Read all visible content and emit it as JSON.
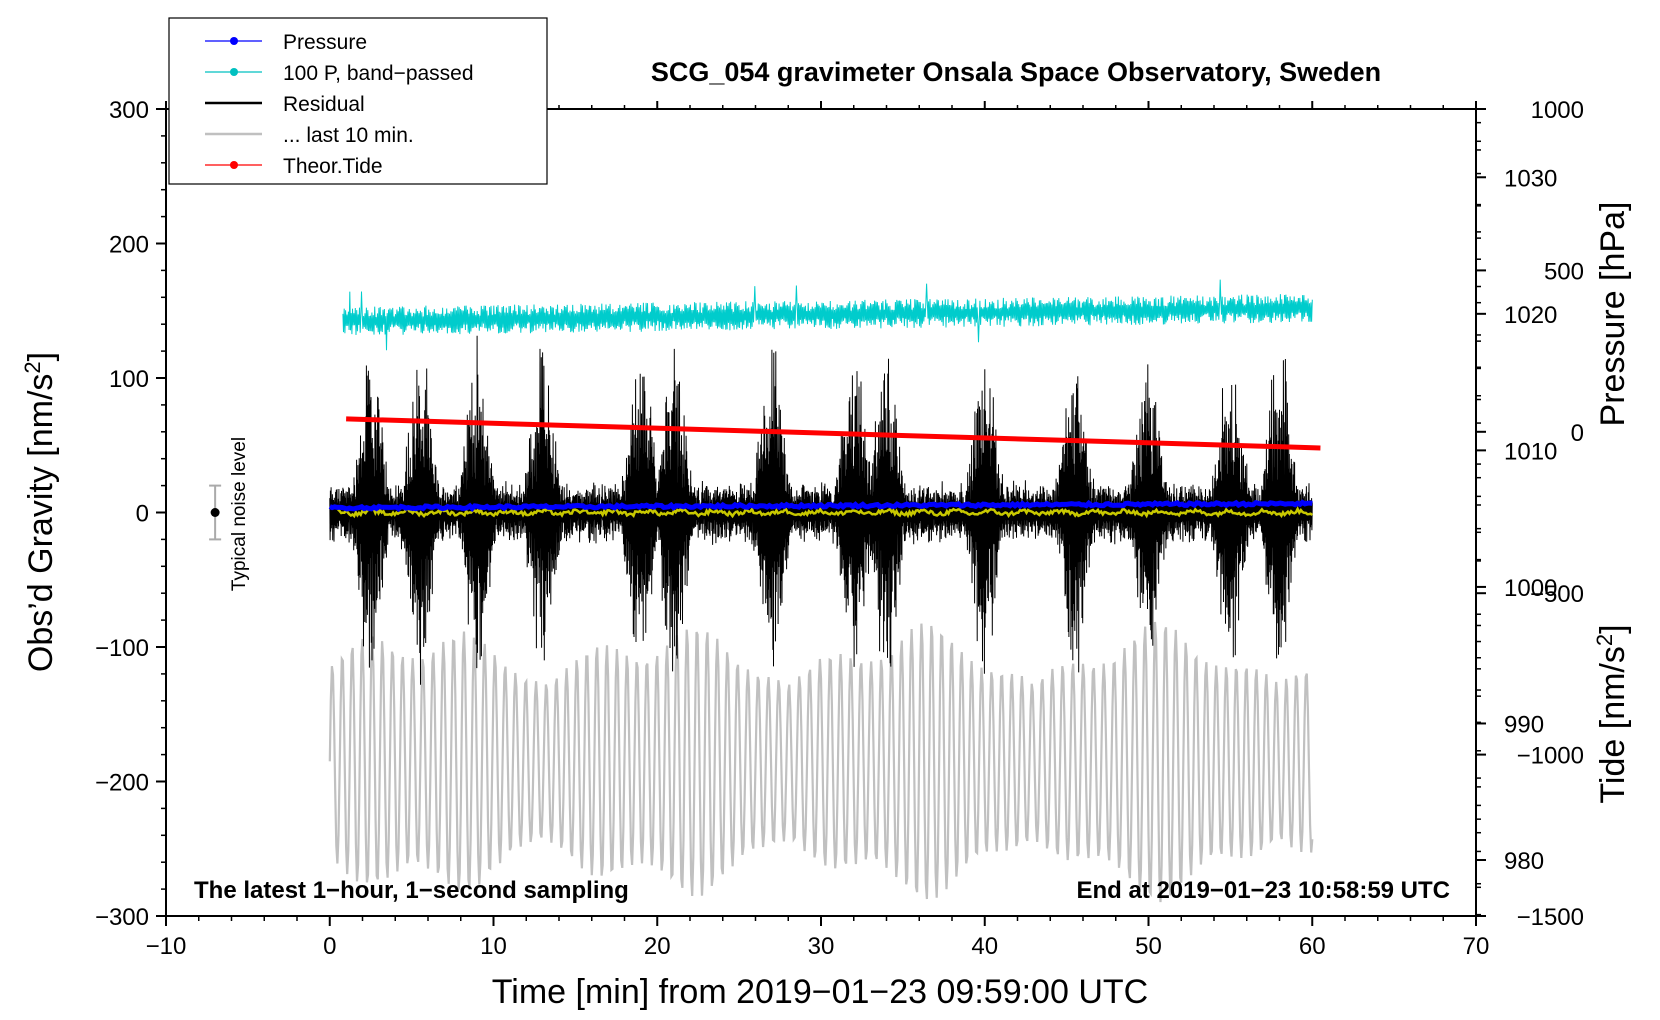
{
  "chart_data": {
    "type": "line",
    "title": "SCG_054 gravimeter Onsala Space Observatory, Sweden",
    "xlabel": "Time [min] from 2019−01−23 09:59:00 UTC",
    "ylabel": "Obs’d Gravity [nm/s²]",
    "ylabel_parts": {
      "main": "Obs’d Gravity [nm/s",
      "sup": "2",
      "end": "]"
    },
    "y2label": "Pressure [hPa]",
    "y3label_parts": {
      "main": "Tide [nm/s",
      "sup": "2",
      "end": "]"
    },
    "xlim": [
      -10,
      70
    ],
    "ylim": [
      -300,
      300
    ],
    "x_ticks": [
      "−10",
      "0",
      "10",
      "20",
      "30",
      "40",
      "50",
      "60",
      "70"
    ],
    "y_ticks": [
      "−300",
      "−200",
      "−100",
      "0",
      "100",
      "200",
      "300"
    ],
    "pressure_axis": {
      "ticks": [
        "980",
        "990",
        "1000",
        "1010",
        "1020",
        "1030"
      ],
      "range_hPa": [
        975.9,
        1035
      ]
    },
    "tide_axis": {
      "ticks": [
        "−1500",
        "−1000",
        "−500",
        "0",
        "500",
        "1000"
      ],
      "range_nms2": [
        -1500,
        1000
      ]
    },
    "legend": {
      "position": "top-left",
      "entries": [
        {
          "label": "Pressure",
          "color": "#0000ff",
          "marker": true
        },
        {
          "label": "100 P, band−passed",
          "color": "#00c0c0",
          "marker": true
        },
        {
          "label": "Residual",
          "color": "#000000",
          "marker": false
        },
        {
          "label": "... last 10 min.",
          "color": "#c0c0c0",
          "marker": false
        },
        {
          "label": "Theor.Tide",
          "color": "#ff0000",
          "marker": true
        }
      ]
    },
    "annotations": {
      "left": "The latest 1−hour, 1−second sampling",
      "right": "End at 2019−01−23 10:58:59 UTC",
      "noise_label": "Typical noise level"
    },
    "noise_bar": {
      "x": -7,
      "center": 0,
      "half_range": 20
    },
    "series": [
      {
        "name": "Pressure",
        "axis": "pressure_hPa",
        "color": "#0000ff",
        "x_range": [
          0,
          60
        ],
        "start": 1005.8,
        "end": 1006.1,
        "noise": 0.2
      },
      {
        "name": "100 P, band−passed",
        "axis": "left_nms2",
        "color": "#00cccc",
        "x_range": [
          0.8,
          60
        ],
        "start": 142,
        "end": 152,
        "amplitude": 9,
        "spike_max": 176,
        "spike_min": 114
      },
      {
        "name": "Residual",
        "axis": "left_nms2",
        "color": "#000000",
        "x_range": [
          0,
          60
        ],
        "envelope_max": 137,
        "envelope_min": -128,
        "burst_minutes": [
          2.5,
          5.5,
          9,
          13,
          19,
          21,
          27,
          32,
          34,
          40,
          45.5,
          50,
          55,
          58
        ]
      },
      {
        "name": "Residual (filtered)",
        "axis": "left_nms2",
        "color": "#c8c800",
        "x_range": [
          0.5,
          60
        ],
        "mean": 0,
        "amplitude": 3
      },
      {
        "name": "... last 10 min.",
        "axis": "left_nms2",
        "color": "#c0c0c0",
        "x_range": [
          0,
          60
        ],
        "center": -185,
        "amplitude_max": 105
      },
      {
        "name": "Theor.Tide",
        "axis": "tide_nms2",
        "color": "#ff0000",
        "x_range": [
          1,
          60.5
        ],
        "start": 40,
        "end": -50
      }
    ]
  }
}
